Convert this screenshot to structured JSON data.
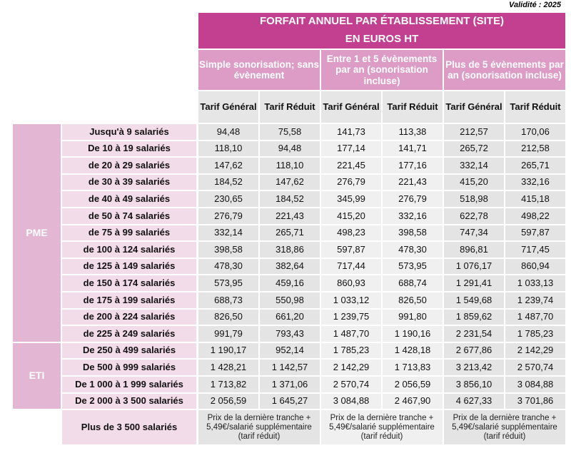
{
  "header": {
    "validity": "Validité : 2025",
    "title": [
      "FORFAIT ANNUEL PAR ÉTABLISSEMENT (SITE)",
      "EN EUROS HT"
    ]
  },
  "table": {
    "groups": [
      "Simple sonorisation; sans évènement",
      "Entre 1 et 5 évènements par an (sonorisation incluse)",
      "Plus de 5 évènements par an (sonorisation incluse)"
    ],
    "subheaders": [
      "Tarif Général",
      "Tarif Réduit",
      "Tarif Général",
      "Tarif Réduit",
      "Tarif Général",
      "Tarif Réduit"
    ],
    "segments": [
      {
        "label": "PME",
        "rows": 13
      },
      {
        "label": "ETI",
        "rows": 4
      }
    ],
    "rows": [
      [
        "Jusqu'à 9 salariés",
        "94,48",
        "75,58",
        "141,73",
        "113,38",
        "212,57",
        "170,06"
      ],
      [
        "De 10 à 19 salariés",
        "118,10",
        "94,48",
        "177,14",
        "141,71",
        "265,72",
        "212,58"
      ],
      [
        "de 20 à 29 salariés",
        "147,62",
        "118,10",
        "221,45",
        "177,16",
        "332,14",
        "265,71"
      ],
      [
        "de 30 à 39 salariés",
        "184,52",
        "147,62",
        "276,79",
        "221,43",
        "415,20",
        "332,16"
      ],
      [
        "de 40 à 49 salariés",
        "230,65",
        "184,52",
        "345,99",
        "276,79",
        "518,98",
        "415,18"
      ],
      [
        "de 50 à 74 salariés",
        "276,79",
        "221,43",
        "415,20",
        "332,16",
        "622,78",
        "498,22"
      ],
      [
        "de 75 à 99 salariés",
        "332,14",
        "265,71",
        "498,23",
        "398,58",
        "747,34",
        "597,87"
      ],
      [
        "de 100 à 124 salariés",
        "398,58",
        "318,86",
        "597,87",
        "478,30",
        "896,81",
        "717,45"
      ],
      [
        "de 125 à 149 salariés",
        "478,30",
        "382,64",
        "717,44",
        "573,95",
        "1 076,17",
        "860,94"
      ],
      [
        "de 150 à 174 salariés",
        "573,95",
        "459,16",
        "860,93",
        "688,74",
        "1 291,41",
        "1 033,13"
      ],
      [
        "de 175 à 199 salariés",
        "688,73",
        "550,98",
        "1 033,12",
        "826,50",
        "1 549,68",
        "1 239,74"
      ],
      [
        "de 200 à 224 salariés",
        "826,50",
        "661,20",
        "1 239,75",
        "991,80",
        "1 859,62",
        "1 487,70"
      ],
      [
        "de 225 à 249 salariés",
        "991,79",
        "793,43",
        "1 487,70",
        "1 190,16",
        "2 231,54",
        "1 785,23"
      ],
      [
        "De 250 à 499 salariés",
        "1 190,17",
        "952,14",
        "1 785,23",
        "1 428,18",
        "2 677,86",
        "2 142,29"
      ],
      [
        "De 500 à 999 salariés",
        "1 428,21",
        "1 142,57",
        "2 142,29",
        "1 713,83",
        "3 213,42",
        "2 570,74"
      ],
      [
        "De 1 000 à 1 999 salariés",
        "1 713,82",
        "1 371,06",
        "2 570,74",
        "2 056,59",
        "3 856,10",
        "3 084,88"
      ],
      [
        "De 2 000 à 3 500 salariés",
        "2 056,59",
        "1 645,27",
        "3 084,88",
        "2 467,90",
        "4 627,33",
        "3 701,86"
      ]
    ],
    "last_row": {
      "label": "Plus de 3 500 salariés",
      "notes": [
        "Prix de la dernière tranche + 5,49€/salarié supplémentaire (tarif réduit)",
        "Prix de la dernière tranche + 5,49€/salarié supplémentaire (tarif réduit)",
        "Prix de la dernière tranche + 5,49€/salarié supplémentaire (tarif réduit)"
      ]
    }
  }
}
